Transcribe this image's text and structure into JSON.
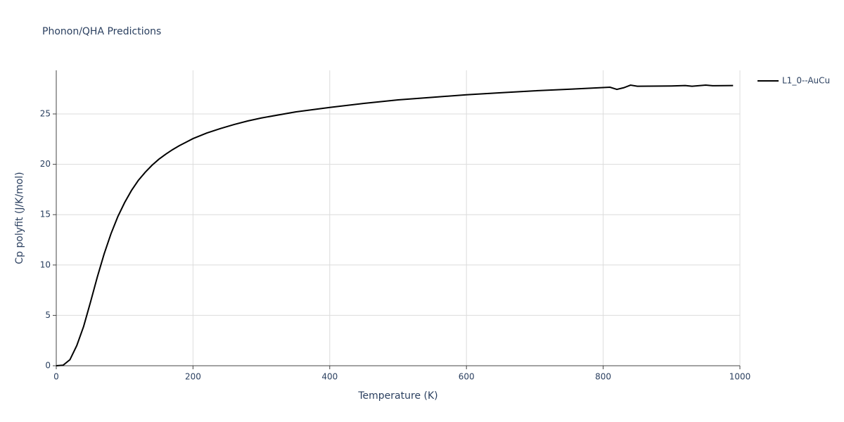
{
  "chart_data": {
    "type": "line",
    "title": "Phonon/QHA Predictions",
    "x_label": "Temperature (K)",
    "y_label": "Cp polyfit (J/K/mol)",
    "x": [
      0,
      10,
      20,
      30,
      40,
      50,
      60,
      70,
      80,
      90,
      100,
      110,
      120,
      130,
      140,
      150,
      160,
      170,
      180,
      190,
      200,
      220,
      240,
      260,
      280,
      300,
      350,
      400,
      450,
      500,
      550,
      600,
      650,
      700,
      750,
      810,
      820,
      830,
      840,
      850,
      900,
      920,
      930,
      950,
      960,
      990
    ],
    "series": [
      {
        "name": "L1_0--AuCu",
        "color": "#000000",
        "values": [
          0,
          0.05,
          0.6,
          2.0,
          3.9,
          6.3,
          8.8,
          11.1,
          13.1,
          14.8,
          16.2,
          17.4,
          18.4,
          19.2,
          19.9,
          20.5,
          21.0,
          21.45,
          21.85,
          22.2,
          22.55,
          23.1,
          23.55,
          23.95,
          24.3,
          24.6,
          25.2,
          25.65,
          26.05,
          26.4,
          26.65,
          26.9,
          27.1,
          27.3,
          27.45,
          27.65,
          27.44,
          27.6,
          27.86,
          27.75,
          27.78,
          27.82,
          27.75,
          27.86,
          27.8,
          27.82
        ]
      }
    ],
    "xlim": [
      0,
      1000
    ],
    "xticks": [
      0,
      200,
      400,
      600,
      800,
      1000
    ],
    "ylim": [
      0,
      29.33
    ],
    "yticks": [
      0,
      5,
      10,
      15,
      20,
      25
    ],
    "grid": true,
    "legend": "top-right"
  }
}
